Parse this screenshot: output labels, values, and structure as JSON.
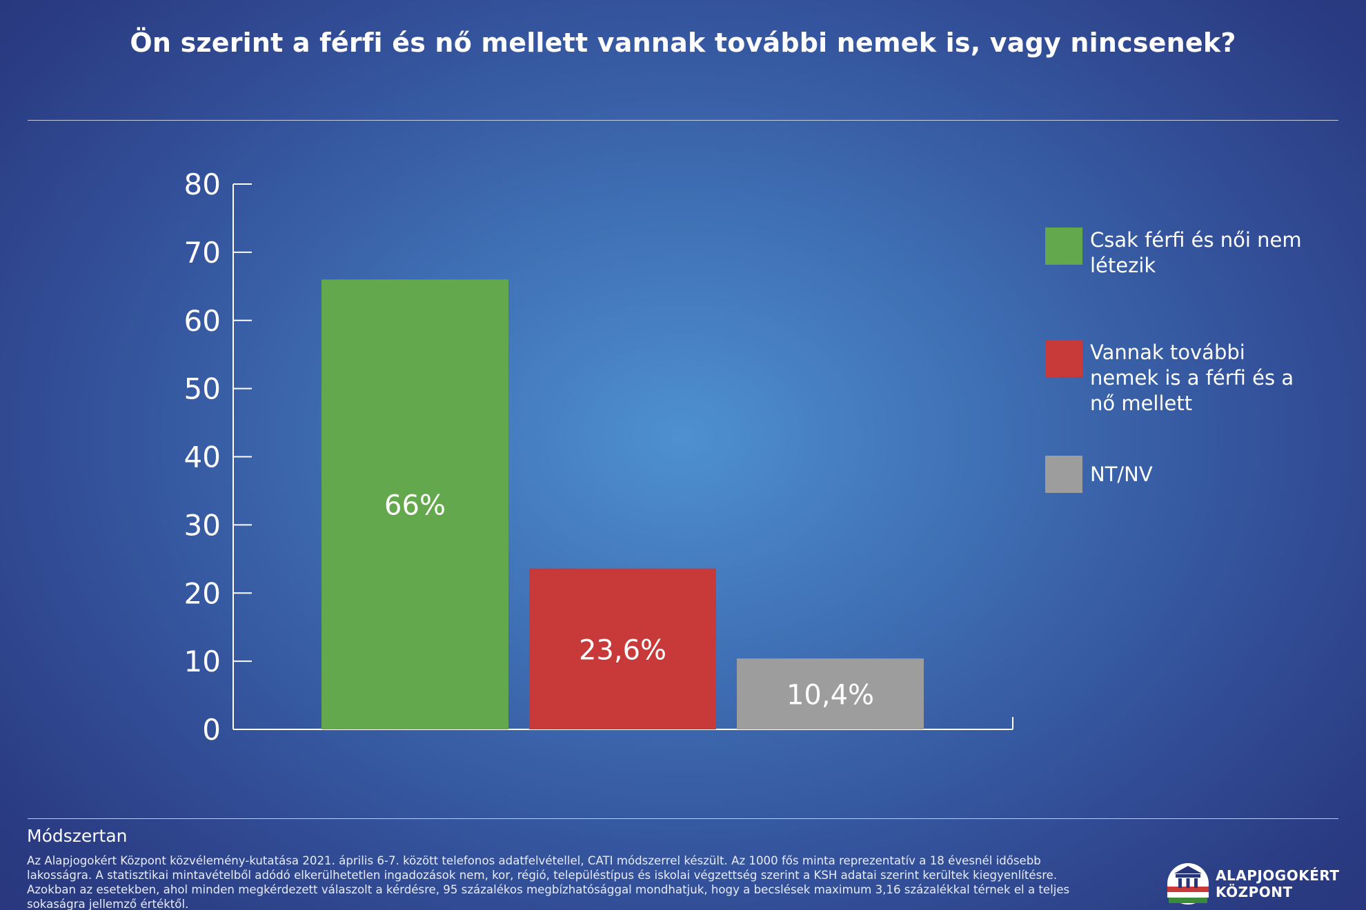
{
  "title": "Ön szerint a férfi és nő mellett vannak további nemek is, vagy nincsenek?",
  "chart_data": {
    "type": "bar",
    "categories": [
      "Csak férfi és női nem létezik",
      "Vannak további nemek is a férfi és a nő mellett",
      "NT/NV"
    ],
    "values": [
      66,
      23.6,
      10.4
    ],
    "data_labels": [
      "66%",
      "23,6%",
      "10,4%"
    ],
    "colors": [
      "#63a84c",
      "#c83a3a",
      "#9d9d9d"
    ],
    "ylim": [
      0,
      80
    ],
    "yticks": [
      0,
      10,
      20,
      30,
      40,
      50,
      60,
      70,
      80
    ],
    "xlabel": "",
    "ylabel": "",
    "legend_position": "right"
  },
  "legend": [
    {
      "label": "Csak férfi és női nem létezik",
      "color": "#63a84c"
    },
    {
      "label": "Vannak további nemek is a férfi és a nő mellett",
      "color": "#c83a3a"
    },
    {
      "label": "NT/NV",
      "color": "#9d9d9d"
    }
  ],
  "methodology": {
    "title": "Módszertan",
    "text": "Az Alapjogokért Központ közvélemény-kutatása 2021. április 6-7. között telefonos adatfelvétellel, CATI módszerrel készült. Az 1000 fős minta reprezentatív a 18 évesnél idősebb lakosságra. A statisztikai mintavételből adódó elkerülhetetlen ingadozások nem, kor, régió, településtípus és iskolai végzettség szerint a KSH adatai szerint kerültek kiegyenlítésre. Azokban az esetekben, ahol minden megkérdezett válaszolt a kérdésre, 95 százalékos megbízhatósággal mondhatjuk, hogy a becslések maximum 3,16 százalékkal térnek el a teljes sokaságra jellemző értéktől."
  },
  "logo": {
    "line1": "ALAPJOGOKÉRT",
    "line2": "KÖZPONT"
  }
}
